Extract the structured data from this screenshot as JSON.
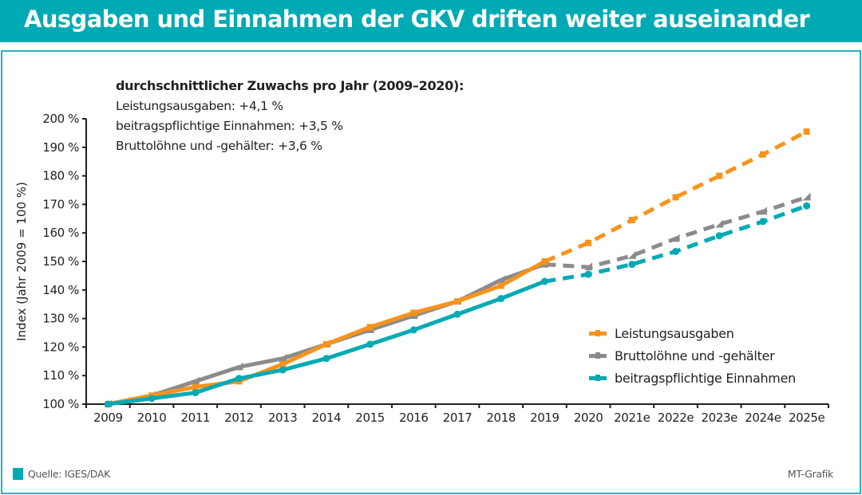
{
  "header": {
    "title": "Ausgaben und Einnahmen der GKV driften weiter auseinander"
  },
  "summary": {
    "title": "durchschnittlicher  Zuwachs pro Jahr (2009–2020):",
    "lines": [
      "Leistungsausgaben: +4,1 %",
      "beitragspflichtige Einnahmen: +3,5 %",
      "Bruttolöhne und -gehälter: +3,6 %"
    ]
  },
  "footer": {
    "source": "Quelle: IGES/DAK",
    "credit": "MT-Grafik"
  },
  "chart_data": {
    "type": "line",
    "title": "Ausgaben und Einnahmen der GKV driften weiter auseinander",
    "xlabel": "",
    "ylabel": "Index (Jahr 2009 = 100 %)",
    "ylim": [
      100,
      200
    ],
    "yticks": [
      100,
      110,
      120,
      130,
      140,
      150,
      160,
      170,
      180,
      190,
      200
    ],
    "ytick_labels": [
      "100 %",
      "110 %",
      "120 %",
      "130 %",
      "140 %",
      "150 %",
      "160 %",
      "170 %",
      "180 %",
      "190 %",
      "200 %"
    ],
    "categories": [
      "2009",
      "2010",
      "2011",
      "2012",
      "2013",
      "2014",
      "2015",
      "2016",
      "2017",
      "2018",
      "2019",
      "2020",
      "2021e",
      "2022e",
      "2023e",
      "2024e",
      "2025e"
    ],
    "forecast_start_index": 10,
    "grid": false,
    "legend_position": "bottom-right",
    "series": [
      {
        "name": "Leistungsausgaben",
        "color": "#f7941d",
        "marker": "square",
        "values": [
          100,
          103,
          106,
          108,
          114,
          121,
          127,
          132,
          136,
          141.5,
          150,
          156.5,
          164.5,
          172.5,
          180,
          187.5,
          195.5
        ]
      },
      {
        "name": "Bruttolöhne und -gehälter",
        "color": "#8c8b8b",
        "marker": "triangle",
        "values": [
          100,
          103,
          108,
          113,
          116,
          121,
          126,
          131,
          136,
          143.5,
          149,
          148,
          152,
          158,
          163,
          167.5,
          172.5
        ]
      },
      {
        "name": "beitragspflichtige Einnahmen",
        "color": "#00aab4",
        "marker": "circle",
        "values": [
          100,
          102,
          104,
          109,
          112,
          116,
          121,
          126,
          131.5,
          137,
          143,
          145.5,
          149,
          153.5,
          159,
          164,
          169.5
        ]
      }
    ],
    "legend_order": [
      0,
      1,
      2
    ]
  }
}
